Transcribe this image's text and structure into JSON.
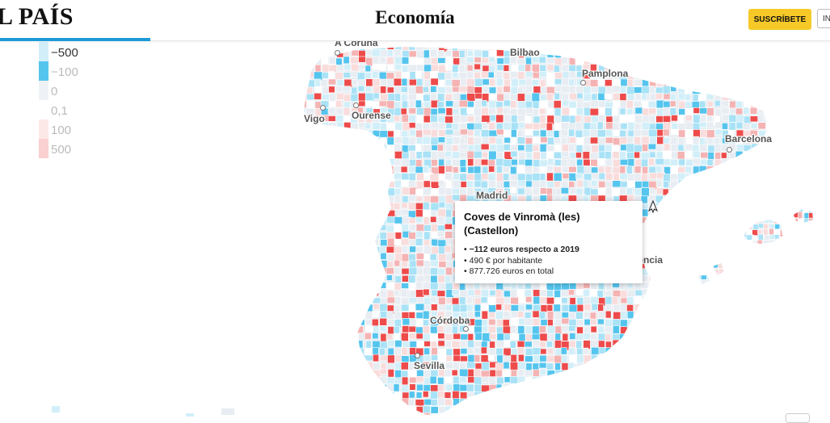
{
  "header": {
    "logo": "L PAÍS",
    "section": "Economía",
    "subscribe_label": "SUSCRÍBETE",
    "login_label": "IN"
  },
  "colors": {
    "accent": "#1e9bd7",
    "subscribe": "#f6c928",
    "strong_negative": "#55c5ee",
    "negative": "#a9e2f6",
    "mild_negative": "#d2eff9",
    "neutral": "#e7edf2",
    "mild_positive": "#f9dcdc",
    "positive": "#f5b3b3",
    "strong_positive": "#ee4b4b"
  },
  "legend": {
    "items": [
      {
        "label": "−500",
        "color": "#d2eff9"
      },
      {
        "label": "−100",
        "color": "#55c5ee"
      },
      {
        "label": "0",
        "color": "#eef2f6"
      },
      {
        "label": "0,1",
        "color": "#ffffff"
      },
      {
        "label": "100",
        "color": "#fde8e8"
      },
      {
        "label": "500",
        "color": "#fbd0d0"
      }
    ]
  },
  "tooltip": {
    "title": "Coves de Vinromà (les) (Castellon)",
    "line1": "• −112 euros respecto a 2019",
    "line2": "• 490 € por habitante",
    "line3": "• 877.726 euros en total"
  },
  "cities": [
    {
      "key": "a_coruna",
      "label": "A Coruña"
    },
    {
      "key": "bilbao",
      "label": "Bilbao"
    },
    {
      "key": "pamplona",
      "label": "Pamplona"
    },
    {
      "key": "vigo",
      "label": "Vigo"
    },
    {
      "key": "ourense",
      "label": "Ourense"
    },
    {
      "key": "barcelona",
      "label": "Barcelona"
    },
    {
      "key": "madrid",
      "label": "Madrid"
    },
    {
      "key": "valencia",
      "label": "Valencia"
    },
    {
      "key": "cordoba",
      "label": "Córdoba"
    },
    {
      "key": "sevilla",
      "label": "Sevilla"
    }
  ]
}
